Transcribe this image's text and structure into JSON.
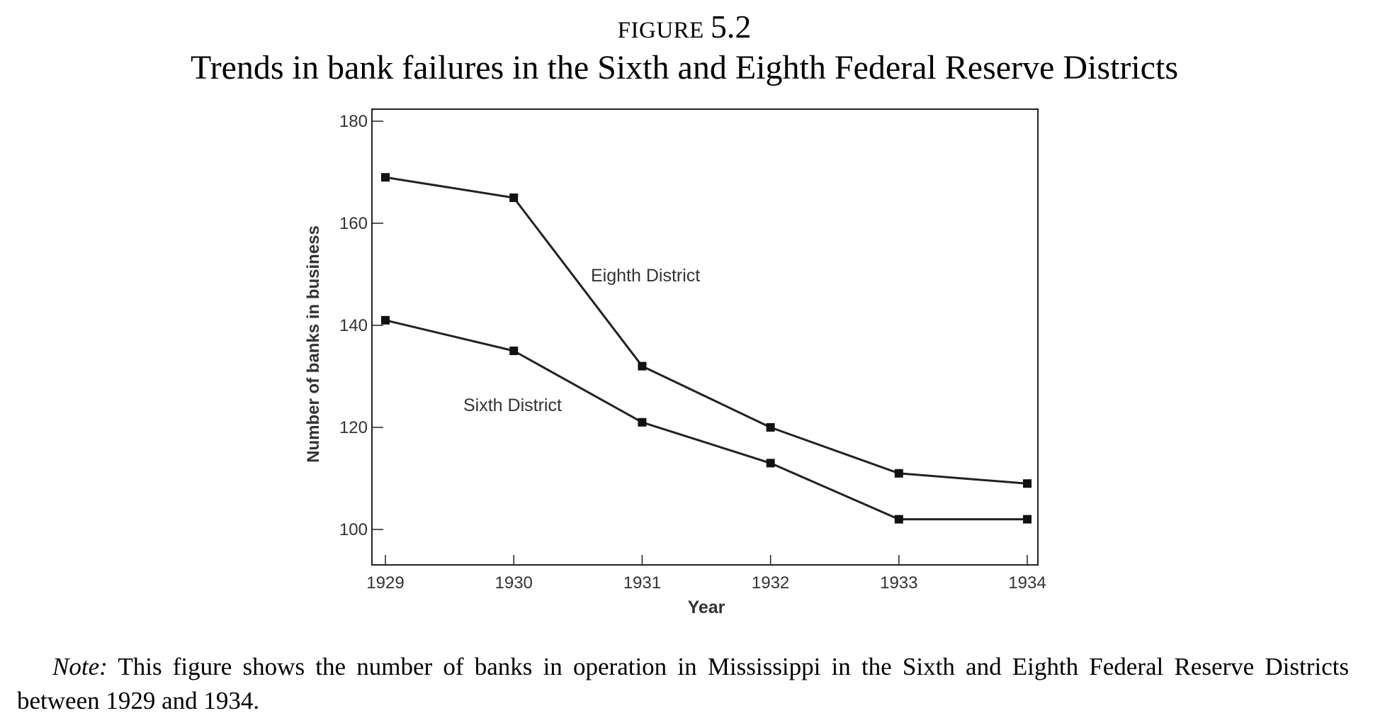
{
  "figure": {
    "label_word": "FIGURE",
    "label_number": "5.2",
    "title": "Trends in bank failures in the Sixth and Eighth Federal Reserve Districts"
  },
  "note": {
    "label": "Note:",
    "text": "This figure shows the number of banks in operation in Mississippi in the Sixth and Eighth Federal Reserve Districts between 1929 and 1934."
  },
  "chart_data": {
    "type": "line",
    "x": [
      1929,
      1930,
      1931,
      1932,
      1933,
      1934
    ],
    "x_tick_labels": [
      "1929",
      "1930",
      "1931",
      "1932",
      "1933",
      "1934"
    ],
    "xlabel": "Year",
    "ylabel": "Number of banks in business",
    "ylim": [
      93,
      182
    ],
    "y_ticks": [
      100,
      120,
      140,
      160,
      180
    ],
    "grid": false,
    "legend": "none (series labelled directly on the plot)",
    "line_color": "#222222",
    "series": [
      {
        "name": "Eighth District",
        "values": [
          169,
          165,
          132,
          120,
          111,
          109
        ]
      },
      {
        "name": "Sixth District",
        "values": [
          141,
          135,
          121,
          113,
          102,
          102
        ]
      }
    ]
  }
}
